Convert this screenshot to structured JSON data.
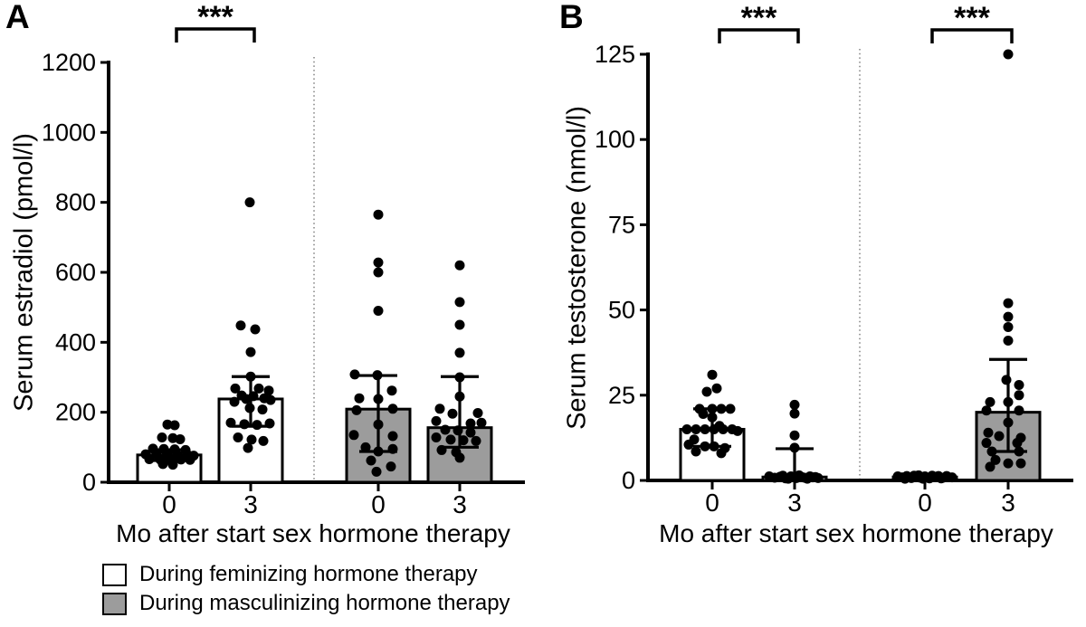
{
  "colors": {
    "axis": "#000000",
    "point": "#000000",
    "feminizing_fill": "#ffffff",
    "masculinizing_fill": "#9c9c9c",
    "separator": "#777777"
  },
  "legend": {
    "items": [
      {
        "swatch": "feminizing",
        "label": "During feminizing hormone therapy"
      },
      {
        "swatch": "masculinizing",
        "label": "During masculinizing hormone therapy"
      }
    ]
  },
  "chart_data": [
    {
      "type": "bar",
      "subtype": "median-iqr-bar-with-jittered-points",
      "panel_label": "A",
      "ylabel": "Serum estradiol (pmol/l)",
      "xlabel": "Mo after start sex hormone therapy",
      "ylim": [
        0,
        1200
      ],
      "yticks": [
        0,
        200,
        400,
        600,
        800,
        1000,
        1200
      ],
      "grid": false,
      "groups": [
        {
          "x": "0",
          "therapy": "feminizing",
          "bar_median": 78,
          "iqr_low": 62,
          "iqr_high": 93,
          "points": [
            [
              -2,
              165
            ],
            [
              6,
              163
            ],
            [
              -8,
              128
            ],
            [
              4,
              126
            ],
            [
              12,
              123
            ],
            [
              -18,
              96
            ],
            [
              -6,
              95
            ],
            [
              6,
              94
            ],
            [
              18,
              92
            ],
            [
              -26,
              80
            ],
            [
              -14,
              79
            ],
            [
              -2,
              78
            ],
            [
              9,
              78
            ],
            [
              20,
              79
            ],
            [
              27,
              76
            ],
            [
              -22,
              66
            ],
            [
              -10,
              65
            ],
            [
              1,
              64
            ],
            [
              13,
              65
            ],
            [
              23,
              64
            ],
            [
              -7,
              52
            ],
            [
              4,
              50
            ]
          ]
        },
        {
          "x": "3",
          "therapy": "feminizing",
          "bar_median": 238,
          "iqr_low": 160,
          "iqr_high": 302,
          "points": [
            [
              -1,
              800
            ],
            [
              -11,
              448
            ],
            [
              5,
              437
            ],
            [
              0,
              372
            ],
            [
              0,
              302
            ],
            [
              -17,
              268
            ],
            [
              9,
              268
            ],
            [
              20,
              262
            ],
            [
              -10,
              248
            ],
            [
              3,
              246
            ],
            [
              -5,
              238
            ],
            [
              15,
              240
            ],
            [
              -18,
              230
            ],
            [
              22,
              235
            ],
            [
              -1,
              212
            ],
            [
              13,
              208
            ],
            [
              -22,
              170
            ],
            [
              -7,
              166
            ],
            [
              7,
              164
            ],
            [
              21,
              168
            ],
            [
              -14,
              128
            ],
            [
              1,
              122
            ],
            [
              14,
              118
            ],
            [
              -3,
              98
            ]
          ]
        },
        {
          "x": "0",
          "therapy": "masculinizing",
          "bar_median": 209,
          "iqr_low": 88,
          "iqr_high": 305,
          "points": [
            [
              0,
              765
            ],
            [
              0,
              628
            ],
            [
              0,
              600
            ],
            [
              0,
              490
            ],
            [
              -26,
              308
            ],
            [
              -1,
              306
            ],
            [
              15,
              262
            ],
            [
              -21,
              240
            ],
            [
              0,
              238
            ],
            [
              16,
              210
            ],
            [
              -24,
              206
            ],
            [
              0,
              165
            ],
            [
              -27,
              135
            ],
            [
              16,
              132
            ],
            [
              -14,
              100
            ],
            [
              16,
              95
            ],
            [
              0,
              88
            ],
            [
              -8,
              62
            ],
            [
              14,
              45
            ],
            [
              -2,
              30
            ]
          ]
        },
        {
          "x": "3",
          "therapy": "masculinizing",
          "bar_median": 156,
          "iqr_low": 100,
          "iqr_high": 302,
          "points": [
            [
              0,
              620
            ],
            [
              0,
              515
            ],
            [
              0,
              450
            ],
            [
              0,
              370
            ],
            [
              0,
              300
            ],
            [
              0,
              245
            ],
            [
              -22,
              210
            ],
            [
              -8,
              196
            ],
            [
              20,
              198
            ],
            [
              -26,
              175
            ],
            [
              12,
              168
            ],
            [
              24,
              170
            ],
            [
              -16,
              150
            ],
            [
              -2,
              148
            ],
            [
              12,
              142
            ],
            [
              -26,
              128
            ],
            [
              -10,
              122
            ],
            [
              4,
              120
            ],
            [
              18,
              118
            ],
            [
              -20,
              92
            ],
            [
              -4,
              86
            ],
            [
              0,
              70
            ]
          ]
        }
      ],
      "brackets": [
        {
          "from": 0,
          "to": 1,
          "label": "***"
        }
      ]
    },
    {
      "type": "bar",
      "subtype": "median-iqr-bar-with-jittered-points",
      "panel_label": "B",
      "ylabel": "Serum testosterone (nmol/l)",
      "xlabel": "Mo after start sex hormone therapy",
      "ylim": [
        0,
        125
      ],
      "yticks": [
        0,
        25,
        50,
        75,
        100,
        125
      ],
      "grid": false,
      "groups": [
        {
          "x": "0",
          "therapy": "feminizing",
          "bar_median": 15,
          "iqr_low": 10,
          "iqr_high": 21,
          "points": [
            [
              0,
              31
            ],
            [
              5,
              27
            ],
            [
              -6,
              26
            ],
            [
              -14,
              21
            ],
            [
              0,
              21
            ],
            [
              10,
              21
            ],
            [
              20,
              21
            ],
            [
              -10,
              19.5
            ],
            [
              0,
              18.5
            ],
            [
              8,
              16
            ],
            [
              -28,
              15
            ],
            [
              -18,
              15
            ],
            [
              -8,
              15
            ],
            [
              2,
              15
            ],
            [
              12,
              15
            ],
            [
              22,
              15
            ],
            [
              28,
              14.5
            ],
            [
              -20,
              12
            ],
            [
              -26,
              10.5
            ],
            [
              -8,
              10
            ],
            [
              2,
              10
            ],
            [
              14,
              9.5
            ],
            [
              -18,
              8.5
            ],
            [
              10,
              8
            ]
          ]
        },
        {
          "x": "3",
          "therapy": "feminizing",
          "bar_median": 1,
          "iqr_low": null,
          "iqr_high": 9.3,
          "points": [
            [
              0,
              22.2
            ],
            [
              0,
              19.6
            ],
            [
              0,
              13.2
            ],
            [
              0,
              9.6
            ],
            [
              -28,
              1.2
            ],
            [
              -22,
              0.8
            ],
            [
              -16,
              1.1
            ],
            [
              -10,
              0.6
            ],
            [
              -4,
              1.2
            ],
            [
              2,
              0.7
            ],
            [
              8,
              1.0
            ],
            [
              14,
              0.5
            ],
            [
              20,
              0.9
            ],
            [
              26,
              0.7
            ],
            [
              -13,
              1.4
            ],
            [
              5,
              1.5
            ],
            [
              17,
              1.2
            ],
            [
              23,
              1.0
            ],
            [
              -7,
              0.5
            ],
            [
              11,
              0.8
            ]
          ]
        },
        {
          "x": "0",
          "therapy": "masculinizing",
          "bar_median": 1,
          "iqr_low": null,
          "iqr_high": null,
          "points": [
            [
              -30,
              1.2
            ],
            [
              -25,
              0.9
            ],
            [
              -20,
              1.3
            ],
            [
              -15,
              0.7
            ],
            [
              -10,
              1.1
            ],
            [
              -5,
              0.8
            ],
            [
              0,
              1.2
            ],
            [
              5,
              0.6
            ],
            [
              10,
              1.0
            ],
            [
              15,
              1.3
            ],
            [
              20,
              0.8
            ],
            [
              25,
              1.1
            ],
            [
              30,
              0.9
            ],
            [
              -22,
              0.5
            ],
            [
              -12,
              1.4
            ],
            [
              -2,
              0.5
            ],
            [
              8,
              1.4
            ],
            [
              18,
              0.6
            ],
            [
              24,
              1.3
            ],
            [
              -7,
              1.5
            ]
          ]
        },
        {
          "x": "3",
          "therapy": "masculinizing",
          "bar_median": 20,
          "iqr_low": 8.5,
          "iqr_high": 35.5,
          "points": [
            [
              0,
              125
            ],
            [
              0,
              52
            ],
            [
              0,
              48
            ],
            [
              0,
              45
            ],
            [
              0,
              41
            ],
            [
              -2,
              29.5
            ],
            [
              12,
              28
            ],
            [
              12,
              25
            ],
            [
              -20,
              23
            ],
            [
              0,
              23
            ],
            [
              -24,
              20.5
            ],
            [
              12,
              20.5
            ],
            [
              0,
              17
            ],
            [
              -22,
              14
            ],
            [
              -10,
              13
            ],
            [
              14,
              12.5
            ],
            [
              -24,
              11
            ],
            [
              10,
              11
            ],
            [
              -18,
              8.5
            ],
            [
              12,
              8.5
            ],
            [
              -14,
              6
            ],
            [
              0,
              5
            ],
            [
              14,
              5
            ],
            [
              -20,
              4
            ]
          ]
        }
      ],
      "brackets": [
        {
          "from": 0,
          "to": 1,
          "label": "***"
        },
        {
          "from": 2,
          "to": 3,
          "label": "***"
        }
      ]
    }
  ]
}
